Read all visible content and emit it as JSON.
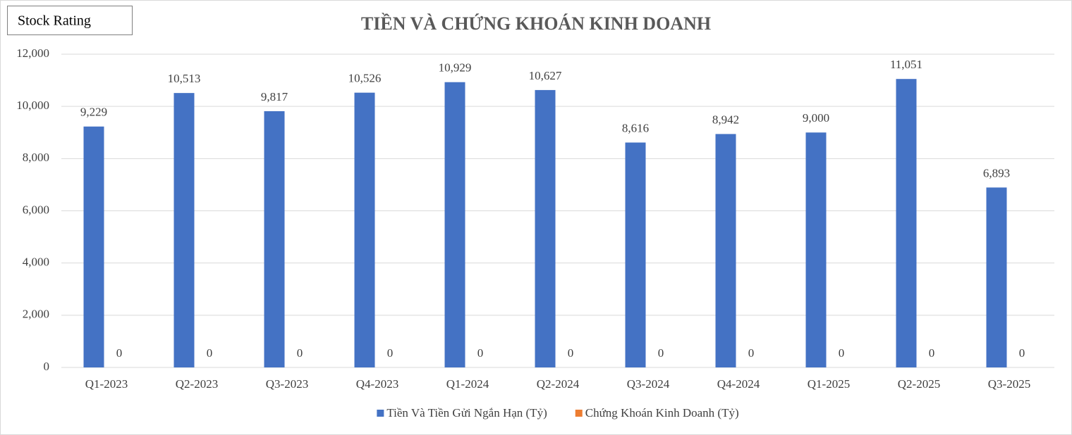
{
  "badge": "Stock Rating",
  "chart_data": {
    "type": "bar",
    "title": "TIỀN VÀ CHỨNG KHOÁN KINH DOANH",
    "categories": [
      "Q1-2023",
      "Q2-2023",
      "Q3-2023",
      "Q4-2023",
      "Q1-2024",
      "Q2-2024",
      "Q3-2024",
      "Q4-2024",
      "Q1-2025",
      "Q2-2025",
      "Q3-2025"
    ],
    "series": [
      {
        "name": "Tiền Và Tiền Gửi Ngắn Hạn (Tỷ)",
        "color": "#4472c4",
        "values": [
          9229,
          10513,
          9817,
          10526,
          10929,
          10627,
          8616,
          8942,
          9000,
          11051,
          6893
        ],
        "value_labels": [
          "9,229",
          "10,513",
          "9,817",
          "10,526",
          "10,929",
          "10,627",
          "8,616",
          "8,942",
          "9,000",
          "11,051",
          "6,893"
        ]
      },
      {
        "name": "Chứng Khoán Kinh Doanh (Tỷ)",
        "color": "#ed7d31",
        "values": [
          0,
          0,
          0,
          0,
          0,
          0,
          0,
          0,
          0,
          0,
          0
        ]
      }
    ],
    "ylim": [
      0,
      12000
    ],
    "yticks": [
      0,
      {
        "value": 2000,
        "label": "2,000"
      },
      {
        "value": 4000,
        "label": "4,000"
      },
      {
        "value": 6000,
        "label": "6,000"
      },
      {
        "value": 8000,
        "label": "8,000"
      },
      {
        "value": 10000,
        "label": "10,000"
      },
      {
        "value": 12000,
        "label": "12,000"
      }
    ],
    "grid": true,
    "legend": "bottom"
  }
}
